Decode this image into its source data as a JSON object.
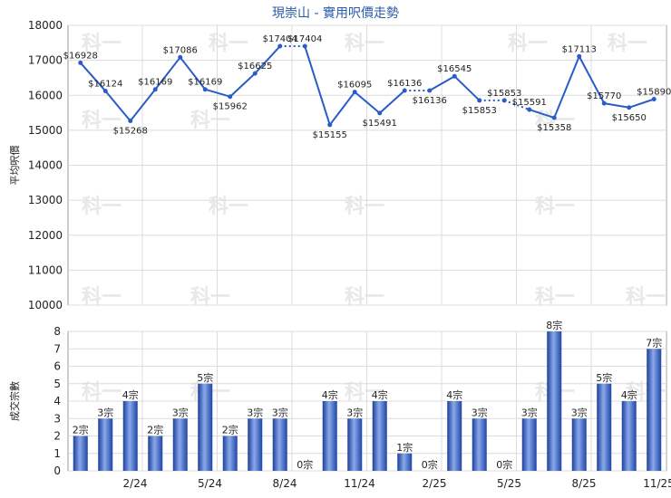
{
  "chart_data": [
    {
      "type": "line",
      "title": "現崇山 - 實用呎價走勢",
      "ylabel": "平均呎價",
      "ylim": [
        10000,
        18000
      ],
      "yticks": [
        10000,
        11000,
        12000,
        13000,
        14000,
        15000,
        16000,
        17000,
        18000
      ],
      "color": "#2a5cc8",
      "series": [
        {
          "values": [
            16928,
            16124,
            15268,
            16169,
            17086,
            16169,
            15962,
            16625,
            17404,
            17404,
            15155,
            16095,
            15491,
            16136,
            16136,
            16545,
            15853,
            15853,
            15591,
            15358,
            17113,
            15770,
            15650,
            15890
          ],
          "labels": [
            "$16928",
            "$16124",
            "$15268",
            "$16169",
            "$17086",
            "$16169",
            "$15962",
            "$16625",
            "$17404",
            "$17404",
            "$15155",
            "$16095",
            "$15491",
            "$16136",
            "$16136",
            "$16545",
            "$15853",
            "$15853",
            "$15591",
            "$15358",
            "$17113",
            "$15770",
            "$15650",
            "$15890"
          ]
        }
      ],
      "dotted_segments": [
        [
          8,
          9
        ],
        [
          13,
          14
        ],
        [
          16,
          17
        ],
        [
          17,
          18
        ]
      ],
      "grid": true
    },
    {
      "type": "bar",
      "ylabel": "成交宗數",
      "ylim": [
        0,
        8
      ],
      "yticks": [
        0,
        1,
        2,
        3,
        4,
        5,
        6,
        7,
        8
      ],
      "color": "#2a5cc8",
      "values": [
        2,
        3,
        4,
        2,
        3,
        5,
        2,
        3,
        3,
        0,
        4,
        3,
        4,
        1,
        0,
        4,
        3,
        0,
        3,
        8,
        3,
        5,
        4,
        7
      ],
      "labels": [
        "2宗",
        "3宗",
        "4宗",
        "2宗",
        "3宗",
        "5宗",
        "2宗",
        "3宗",
        "3宗",
        "0宗",
        "4宗",
        "3宗",
        "4宗",
        "1宗",
        "0宗",
        "4宗",
        "3宗",
        "0宗",
        "3宗",
        "8宗",
        "3宗",
        "5宗",
        "4宗",
        "7宗"
      ],
      "xtick_labels": [
        "2/24",
        "5/24",
        "8/24",
        "11/24",
        "2/25",
        "5/25",
        "8/25",
        "11/25"
      ],
      "xtick_indices": [
        2,
        5,
        8,
        11,
        14,
        17,
        20,
        23
      ],
      "grid": true
    }
  ],
  "watermark": "科一"
}
